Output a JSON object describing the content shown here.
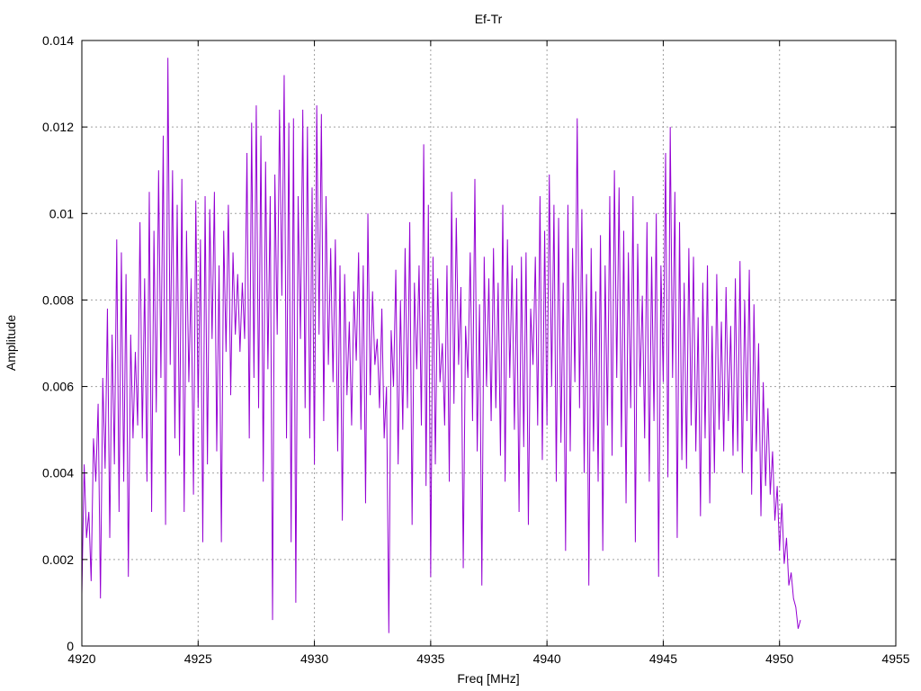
{
  "chart_data": {
    "type": "line",
    "title": "Ef-Tr",
    "xlabel": "Freq [MHz]",
    "ylabel": "Amplitude",
    "xlim": [
      4920,
      4955
    ],
    "ylim": [
      0,
      0.014
    ],
    "x_ticks": [
      4920,
      4925,
      4930,
      4935,
      4940,
      4945,
      4950,
      4955
    ],
    "y_ticks": [
      0,
      0.002,
      0.004,
      0.006,
      0.008,
      0.01,
      0.012,
      0.014
    ],
    "y_tick_labels": [
      "0",
      "0.002",
      "0.004",
      "0.006",
      "0.008",
      "0.01",
      "0.012",
      "0.014"
    ],
    "grid": true,
    "legend": "none",
    "series": [
      {
        "color": "#9400d3",
        "x_start": 4920.0,
        "x_step": 0.1,
        "values": [
          0.0012,
          0.0042,
          0.0025,
          0.0031,
          0.0015,
          0.0048,
          0.0038,
          0.0056,
          0.0011,
          0.0062,
          0.0041,
          0.0078,
          0.0025,
          0.0072,
          0.0042,
          0.0094,
          0.0031,
          0.0091,
          0.0038,
          0.0086,
          0.0016,
          0.0072,
          0.0048,
          0.0068,
          0.0051,
          0.0098,
          0.0048,
          0.0085,
          0.0038,
          0.0105,
          0.0031,
          0.0096,
          0.0054,
          0.011,
          0.0062,
          0.0118,
          0.0028,
          0.0136,
          0.0065,
          0.011,
          0.0048,
          0.0102,
          0.0044,
          0.0108,
          0.0031,
          0.0096,
          0.0061,
          0.0085,
          0.0035,
          0.0103,
          0.0055,
          0.0094,
          0.0024,
          0.0104,
          0.0042,
          0.0101,
          0.0071,
          0.0105,
          0.0045,
          0.0088,
          0.0024,
          0.0096,
          0.0068,
          0.0102,
          0.0058,
          0.0091,
          0.0072,
          0.0086,
          0.0068,
          0.0084,
          0.0071,
          0.0114,
          0.0048,
          0.0121,
          0.0062,
          0.0125,
          0.0055,
          0.0118,
          0.0038,
          0.0112,
          0.0064,
          0.0104,
          0.0006,
          0.0109,
          0.0072,
          0.0124,
          0.0081,
          0.0132,
          0.0048,
          0.0121,
          0.0024,
          0.0122,
          0.001,
          0.0104,
          0.0071,
          0.0124,
          0.0055,
          0.012,
          0.0048,
          0.0106,
          0.0042,
          0.0125,
          0.0072,
          0.0123,
          0.0052,
          0.0104,
          0.0065,
          0.0092,
          0.0061,
          0.0094,
          0.0045,
          0.0088,
          0.0029,
          0.0086,
          0.0058,
          0.0075,
          0.0051,
          0.0082,
          0.0066,
          0.0091,
          0.005,
          0.0088,
          0.0033,
          0.01,
          0.0058,
          0.0082,
          0.0065,
          0.0071,
          0.0055,
          0.0078,
          0.0048,
          0.006,
          0.0003,
          0.0073,
          0.006,
          0.0087,
          0.0042,
          0.008,
          0.005,
          0.0092,
          0.0055,
          0.0098,
          0.0028,
          0.0084,
          0.0064,
          0.0088,
          0.0051,
          0.0116,
          0.0037,
          0.0102,
          0.0016,
          0.009,
          0.0042,
          0.0085,
          0.0061,
          0.007,
          0.0051,
          0.0088,
          0.0038,
          0.0105,
          0.0056,
          0.0099,
          0.0065,
          0.0083,
          0.0018,
          0.0074,
          0.0062,
          0.0091,
          0.0052,
          0.0108,
          0.0045,
          0.0079,
          0.0014,
          0.009,
          0.006,
          0.0085,
          0.0052,
          0.0092,
          0.0055,
          0.0084,
          0.0044,
          0.0102,
          0.0038,
          0.0094,
          0.0062,
          0.0088,
          0.005,
          0.0085,
          0.0031,
          0.009,
          0.0046,
          0.0091,
          0.0028,
          0.0078,
          0.0065,
          0.009,
          0.0051,
          0.0104,
          0.0043,
          0.0096,
          0.0051,
          0.0109,
          0.006,
          0.0102,
          0.0038,
          0.0099,
          0.0047,
          0.0084,
          0.0022,
          0.0102,
          0.0045,
          0.0092,
          0.0061,
          0.0122,
          0.0055,
          0.0101,
          0.004,
          0.0086,
          0.0014,
          0.0092,
          0.0045,
          0.0082,
          0.0038,
          0.0095,
          0.0022,
          0.0088,
          0.0051,
          0.0104,
          0.0044,
          0.011,
          0.0062,
          0.0106,
          0.0046,
          0.0096,
          0.0033,
          0.0091,
          0.0055,
          0.0104,
          0.0024,
          0.0093,
          0.006,
          0.0081,
          0.0048,
          0.0098,
          0.0038,
          0.009,
          0.0052,
          0.01,
          0.0016,
          0.0088,
          0.0061,
          0.0114,
          0.0039,
          0.012,
          0.0062,
          0.0105,
          0.0025,
          0.0098,
          0.0043,
          0.0084,
          0.0041,
          0.0092,
          0.0051,
          0.009,
          0.0045,
          0.0076,
          0.003,
          0.0084,
          0.0048,
          0.0088,
          0.0033,
          0.0074,
          0.004,
          0.0086,
          0.005,
          0.0075,
          0.0045,
          0.0083,
          0.0052,
          0.0074,
          0.0044,
          0.0085,
          0.0045,
          0.0089,
          0.004,
          0.008,
          0.0052,
          0.0087,
          0.0035,
          0.0079,
          0.0045,
          0.007,
          0.003,
          0.0061,
          0.0037,
          0.0055,
          0.0035,
          0.0045,
          0.0029,
          0.0037,
          0.0022,
          0.0033,
          0.0019,
          0.0025,
          0.0014,
          0.0017,
          0.0011,
          0.0009,
          0.0004,
          0.0006
        ]
      }
    ]
  }
}
